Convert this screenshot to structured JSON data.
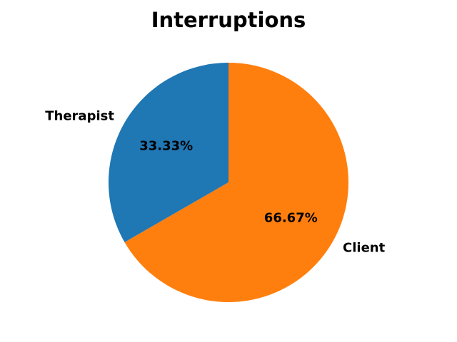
{
  "chart_data": {
    "type": "pie",
    "title": "Interruptions",
    "categories": [
      "Therapist",
      "Client"
    ],
    "values": [
      33.33,
      66.67
    ],
    "percent_labels": [
      "33.33%",
      "66.67%"
    ],
    "colors": [
      "#1f77b4",
      "#ff7f0e"
    ],
    "start_angle_deg": 90,
    "direction": "counterclockwise",
    "legend": "none"
  }
}
